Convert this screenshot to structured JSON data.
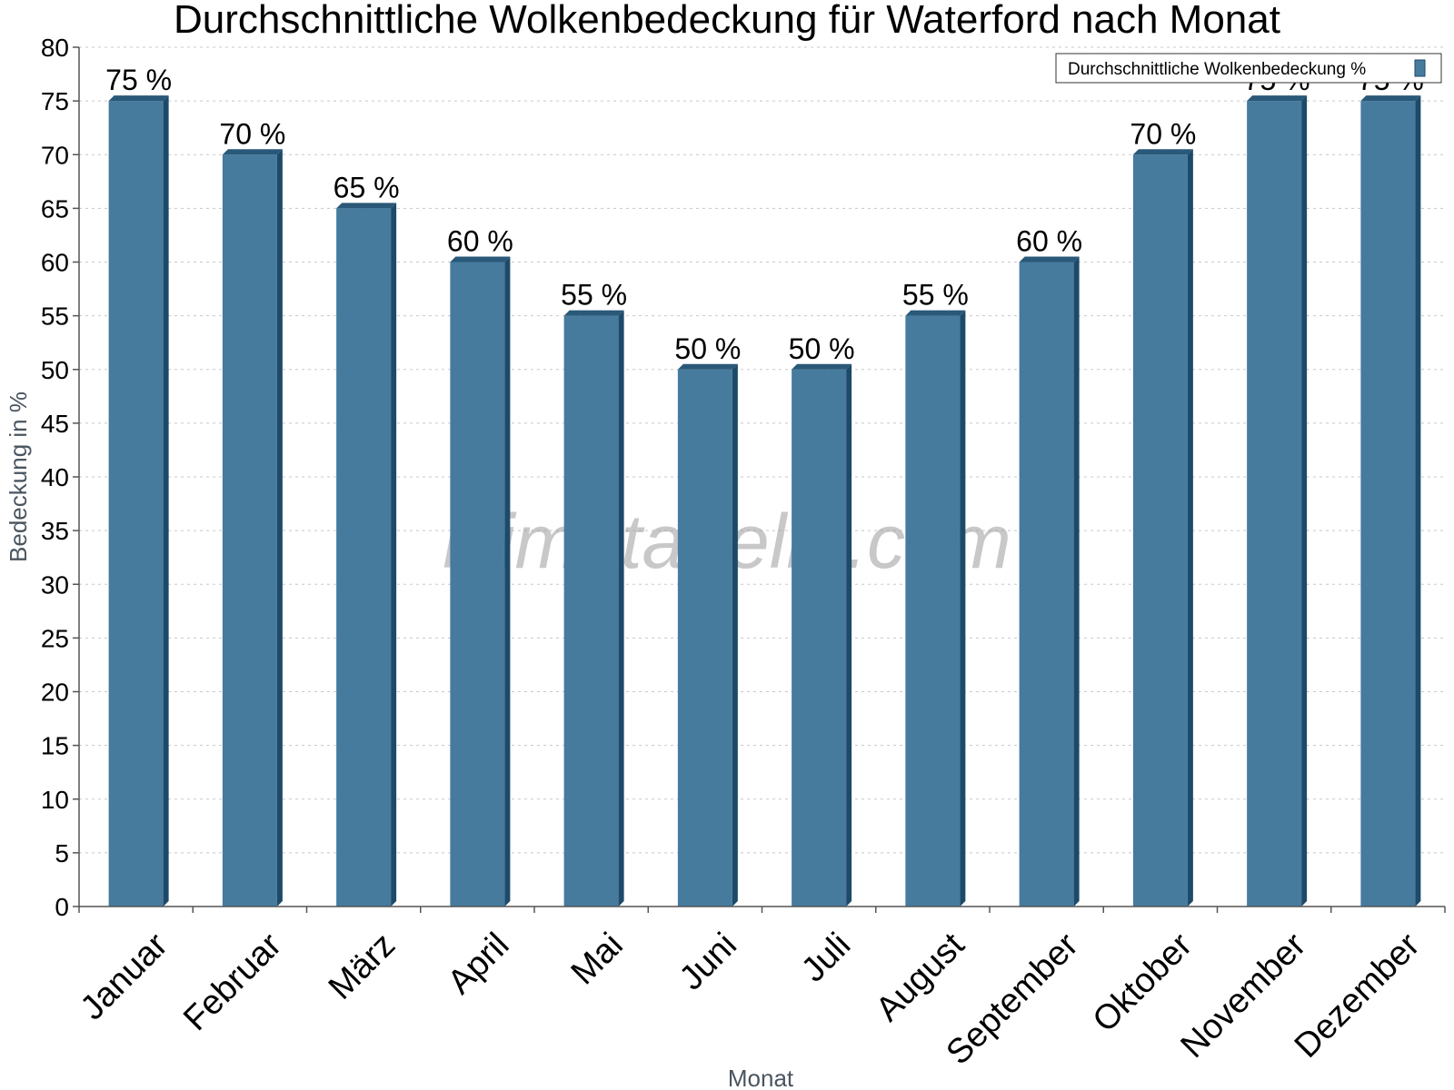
{
  "chart_data": {
    "type": "bar",
    "title": "Durchschnittliche Wolkenbedeckung für Waterford nach Monat",
    "xlabel": "Monat",
    "ylabel": "Bedeckung in %",
    "categories": [
      "Januar",
      "Februar",
      "März",
      "April",
      "Mai",
      "Juni",
      "Juli",
      "August",
      "September",
      "Oktober",
      "November",
      "Dezember"
    ],
    "series": [
      {
        "name": "Durchschnittliche Wolkenbedeckung %",
        "values": [
          75,
          70,
          65,
          60,
          55,
          50,
          50,
          55,
          60,
          70,
          75,
          75
        ],
        "labels": [
          "75 %",
          "70 %",
          "65 %",
          "60 %",
          "55 %",
          "50 %",
          "50 %",
          "55 %",
          "60 %",
          "70 %",
          "75 %",
          "75 %"
        ]
      }
    ],
    "ylim": [
      0,
      80
    ],
    "yticks": [
      0,
      5,
      10,
      15,
      20,
      25,
      30,
      35,
      40,
      45,
      50,
      55,
      60,
      65,
      70,
      75,
      80
    ],
    "grid": true,
    "legend_position": "top-right",
    "colors": {
      "bar": "#467b9e",
      "bar_top": "#2a5878",
      "bar_side": "#1e4a6a"
    },
    "watermark": "klimatabelle.com"
  }
}
